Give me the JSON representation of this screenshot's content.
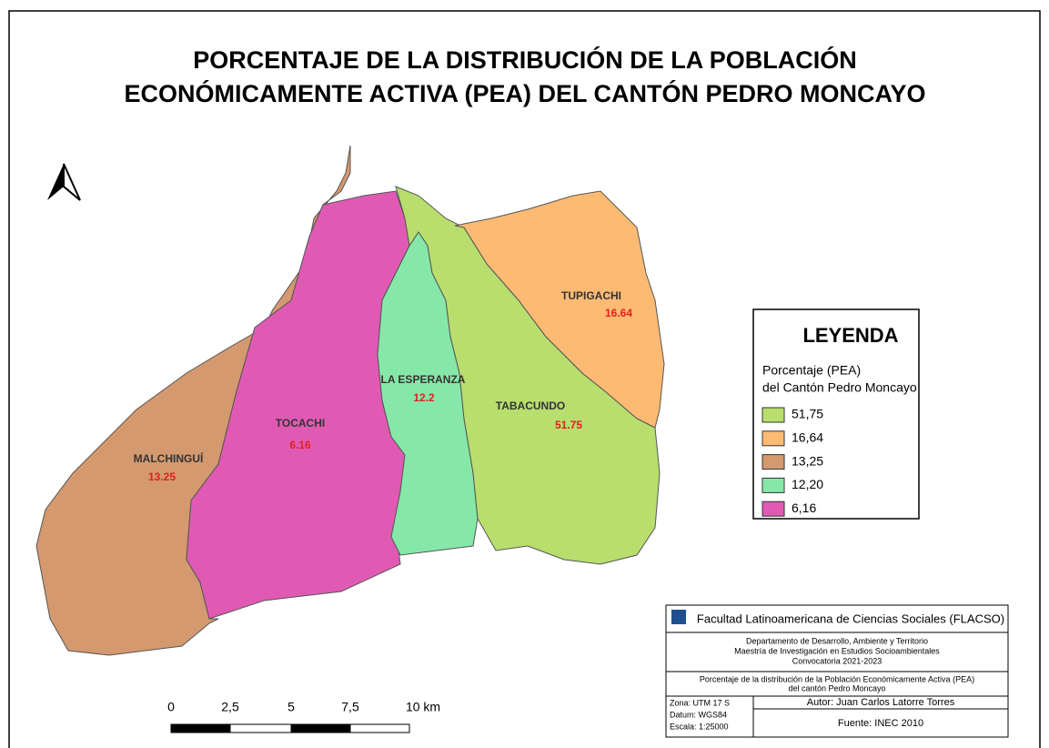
{
  "title": [
    "PORCENTAJE DE LA DISTRIBUCIÓN DE LA POBLACIÓN",
    "ECONÓMICAMENTE ACTIVA (PEA) DEL CANTÓN PEDRO MONCAYO"
  ],
  "regions": [
    {
      "name": "MALCHINGUÍ",
      "value": "13.25",
      "color": "#d4996f"
    },
    {
      "name": "TOCACHI",
      "value": "6.16",
      "color": "#e05ab4"
    },
    {
      "name": "LA ESPERANZA",
      "value": "12.2",
      "color": "#86e8a8"
    },
    {
      "name": "TABACUNDO",
      "value": "51.75",
      "color": "#b8de6e"
    },
    {
      "name": "TUPIGACHI",
      "value": "16.64",
      "color": "#fdba72"
    }
  ],
  "legend": {
    "title": "LEYENDA",
    "subtitle": [
      "Porcentaje (PEA)",
      "del Cantón Pedro Moncayo"
    ],
    "items": [
      {
        "label": "51,75",
        "color": "#b8de6e"
      },
      {
        "label": "16,64",
        "color": "#fdba72"
      },
      {
        "label": "13,25",
        "color": "#d4996f"
      },
      {
        "label": "12,20",
        "color": "#86e8a8"
      },
      {
        "label": "6,16",
        "color": "#e05ab4"
      }
    ]
  },
  "scale": {
    "labels": [
      "0",
      "2,5",
      "5",
      "7,5",
      "10 km"
    ]
  },
  "cartouche": {
    "institution": "Facultad Latinoamericana de Ciencias Sociales (FLACSO)",
    "department": [
      "Departamento de Desarrollo, Ambiente y Territorio",
      "Maestría de Investigación en Estudios Socioambientales",
      "Convocatoria 2021-2023"
    ],
    "map_title": [
      "Porcentaje de la distribución de la Población Económicamente Activa (PEA)",
      "del cantón Pedro Moncayo"
    ],
    "projection": [
      "Zona: UTM 17 S",
      "Datum: WGS84",
      "Escala: 1:25000"
    ],
    "author": "Autor: Juan Carlos Latorre Torres",
    "source": "Fuente: INEC 2010"
  }
}
